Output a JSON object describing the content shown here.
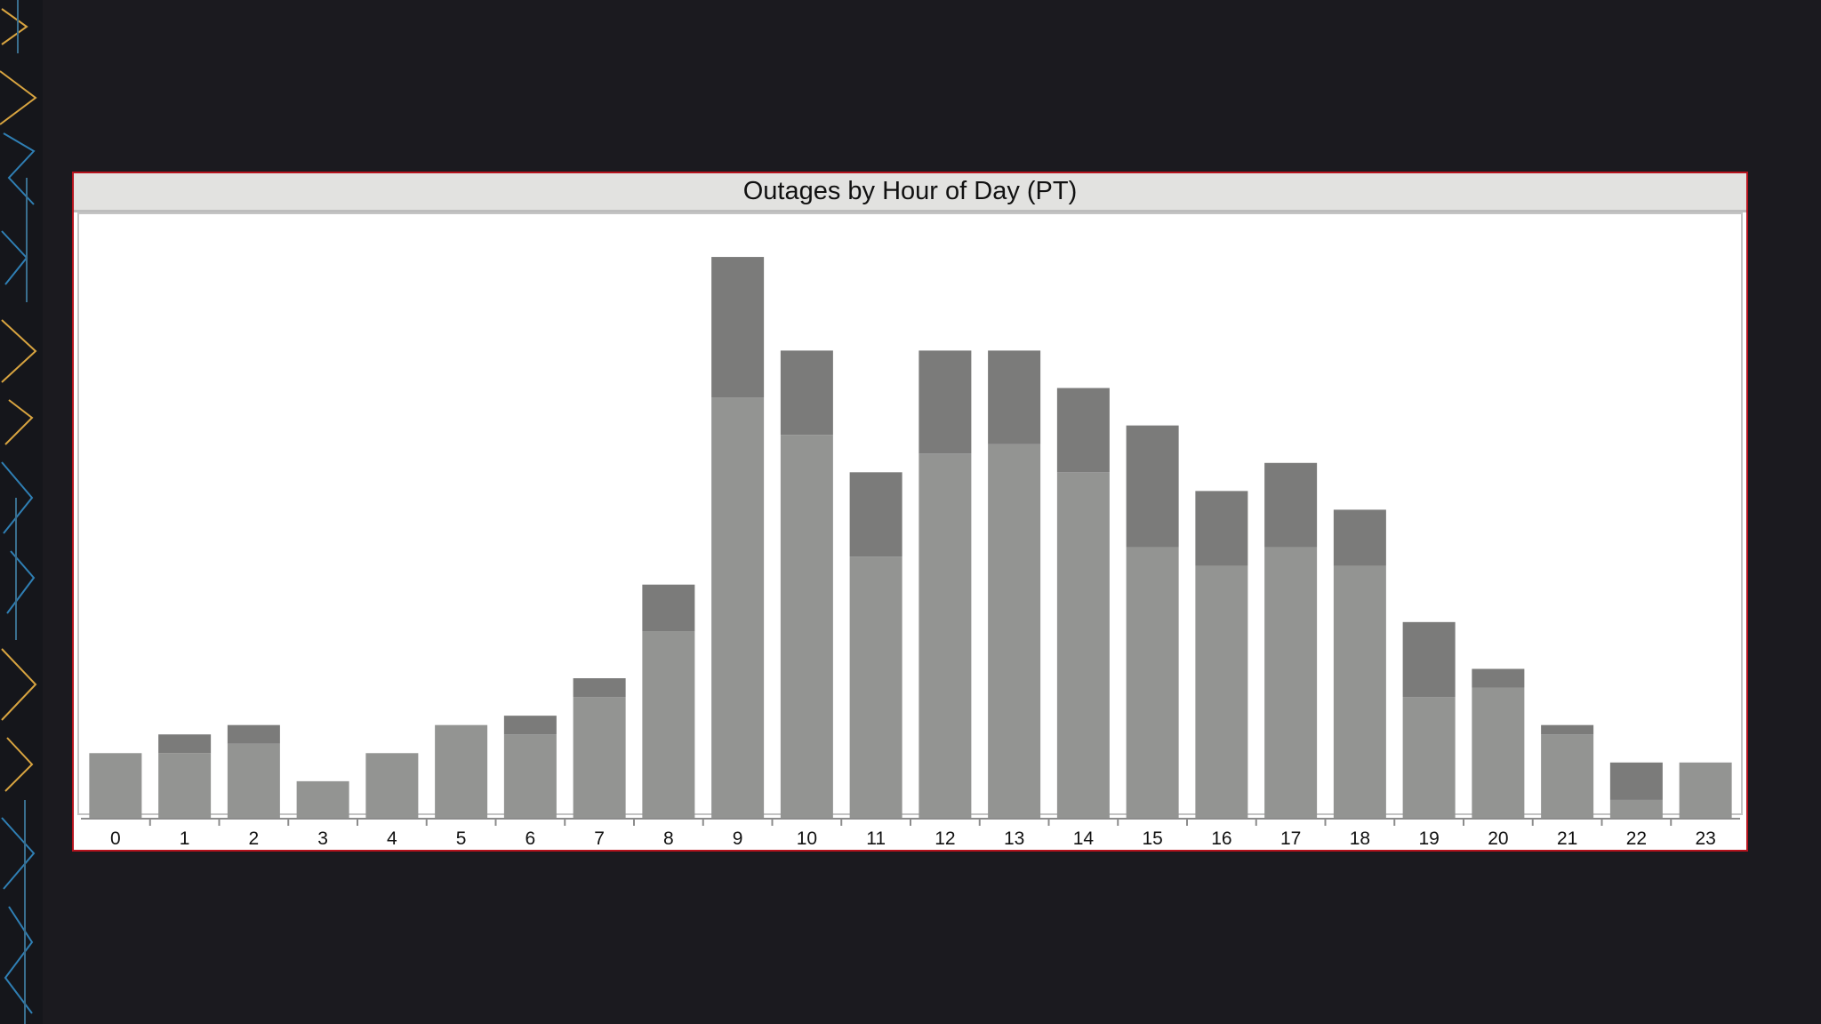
{
  "chart_data": {
    "type": "bar",
    "stacked": true,
    "title": "Outages by Hour of Day (PT)",
    "xlabel": "",
    "ylabel": "",
    "categories": [
      "0",
      "1",
      "2",
      "3",
      "4",
      "5",
      "6",
      "7",
      "8",
      "9",
      "10",
      "11",
      "12",
      "13",
      "14",
      "15",
      "16",
      "17",
      "18",
      "19",
      "20",
      "21",
      "22",
      "23"
    ],
    "series": [
      {
        "values": [
          7,
          7,
          8,
          4,
          7,
          10,
          9,
          13,
          20,
          45,
          41,
          28,
          39,
          40,
          37,
          29,
          27,
          29,
          27,
          13,
          14,
          9,
          2,
          6
        ]
      },
      {
        "values": [
          0,
          2,
          2,
          0,
          0,
          0,
          2,
          2,
          5,
          15,
          9,
          9,
          11,
          10,
          9,
          13,
          8,
          9,
          6,
          8,
          2,
          1,
          4,
          0
        ]
      }
    ],
    "ylim": [
      0,
      62
    ],
    "grid": false,
    "legend": "none",
    "colors": {
      "base": "#939492",
      "top": "#7b7b7a",
      "axis": "#8c8c8c",
      "frame": "#b5131d"
    }
  }
}
